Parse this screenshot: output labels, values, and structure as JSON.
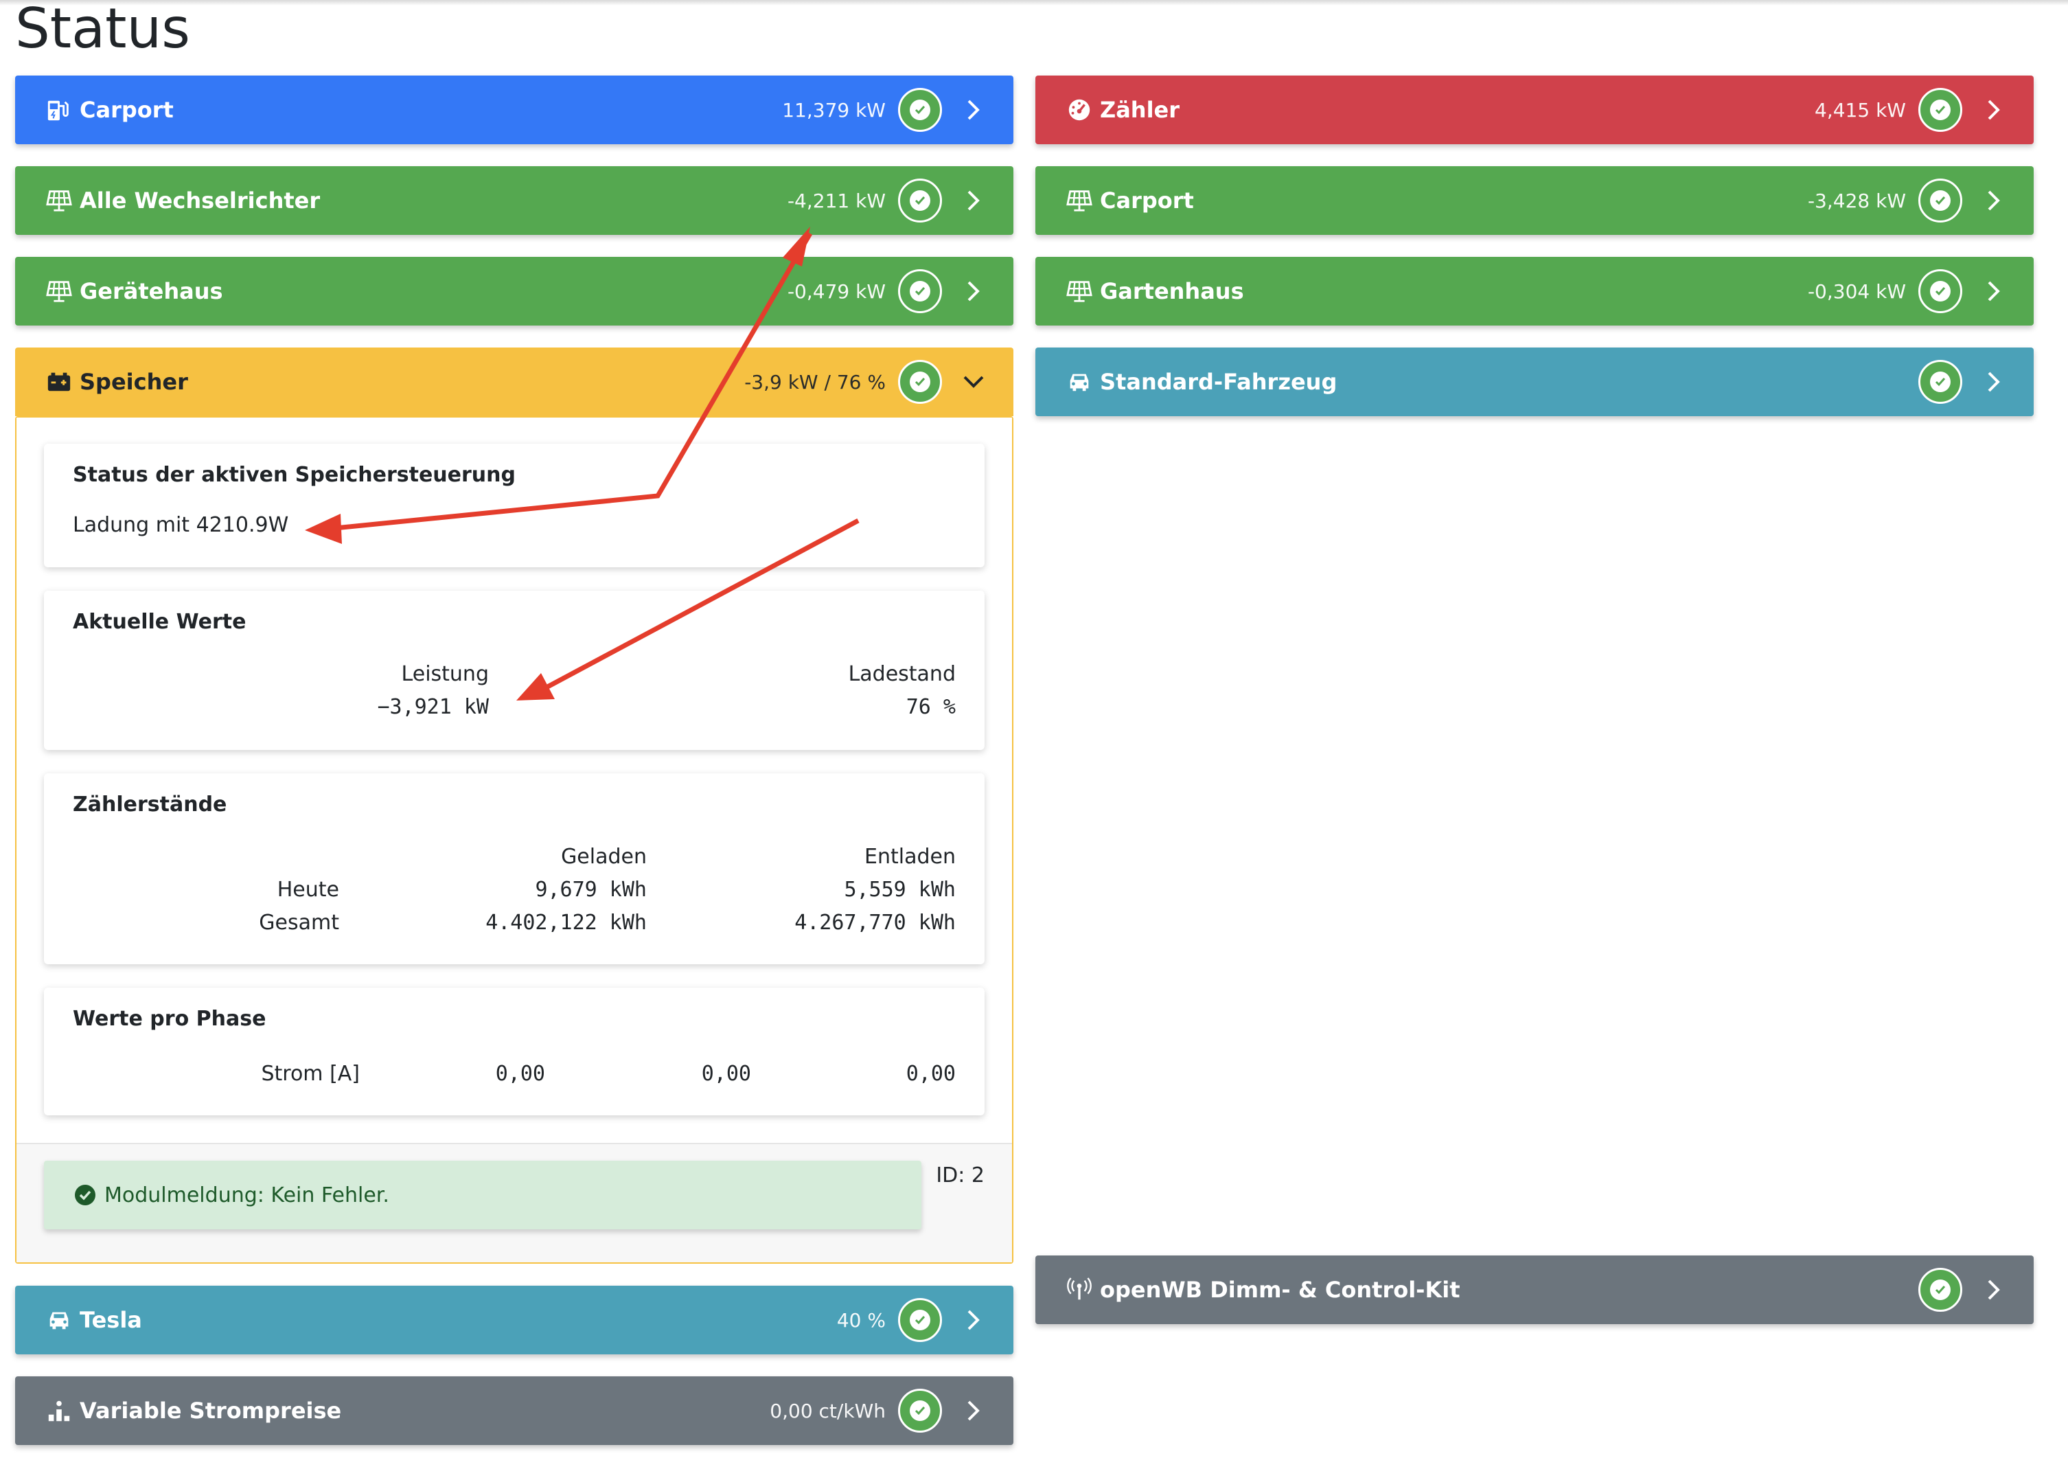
{
  "page": {
    "title": "Status"
  },
  "colors": {
    "blue": "#3478f6",
    "red": "#d0414b",
    "green": "#55a850",
    "yellow": "#f6c142",
    "teal": "#4ba1b8",
    "gray": "#6c757d",
    "annotation_arrow": "#e43d2c"
  },
  "left_column": [
    {
      "id": "carport-meter",
      "icon": "charging-station-icon",
      "label": "Carport",
      "value": "11,379 kW",
      "color": "blue",
      "expanded": false
    },
    {
      "id": "alle-wechselrichter",
      "icon": "solar-panel-icon",
      "label": "Alle Wechselrichter",
      "value": "-4,211 kW",
      "color": "green",
      "expanded": false
    },
    {
      "id": "geraetehaus",
      "icon": "solar-panel-icon",
      "label": "Gerätehaus",
      "value": "-0,479 kW",
      "color": "green",
      "expanded": false
    },
    {
      "id": "speicher",
      "icon": "battery-icon",
      "label": "Speicher",
      "value": "-3,9 kW / 76 %",
      "color": "yellow",
      "expanded": true
    }
  ],
  "speicher_panel": {
    "status_card": {
      "title": "Status der aktiven Speichersteuerung",
      "text": "Ladung mit 4210.9W"
    },
    "aktuelle_werte": {
      "title": "Aktuelle Werte",
      "leistung_label": "Leistung",
      "leistung_value": "−3,921 kW",
      "ladestand_label": "Ladestand",
      "ladestand_value": "76 %"
    },
    "zaehlerstaende": {
      "title": "Zählerstände",
      "col_geladen": "Geladen",
      "col_entladen": "Entladen",
      "rows": [
        {
          "label": "Heute",
          "geladen": "9,679 kWh",
          "entladen": "5,559 kWh"
        },
        {
          "label": "Gesamt",
          "geladen": "4.402,122 kWh",
          "entladen": "4.267,770 kWh"
        }
      ]
    },
    "werte_pro_phase": {
      "title": "Werte pro Phase",
      "row_label": "Strom [A]",
      "values": [
        "0,00",
        "0,00",
        "0,00"
      ]
    },
    "footer": {
      "message": "Modulmeldung: Kein Fehler.",
      "id_text": "ID: 2"
    }
  },
  "left_bottom": [
    {
      "id": "tesla",
      "icon": "car-icon",
      "label": "Tesla",
      "value": "40 %",
      "color": "teal"
    },
    {
      "id": "variable-strompreise",
      "icon": "price-chart-icon",
      "label": "Variable Strompreise",
      "value": "0,00 ct/kWh",
      "color": "gray"
    }
  ],
  "right_column": [
    {
      "id": "zaehler",
      "icon": "gauge-icon",
      "label": "Zähler",
      "value": "4,415 kW",
      "color": "red"
    },
    {
      "id": "carport-pv",
      "icon": "solar-panel-icon",
      "label": "Carport",
      "value": "-3,428 kW",
      "color": "green"
    },
    {
      "id": "gartenhaus",
      "icon": "solar-panel-icon",
      "label": "Gartenhaus",
      "value": "-0,304 kW",
      "color": "green"
    },
    {
      "id": "standard-fahrzeug",
      "icon": "car-icon",
      "label": "Standard-Fahrzeug",
      "value": "",
      "color": "teal"
    }
  ],
  "right_bottom": [
    {
      "id": "openwb-dimm",
      "icon": "antenna-icon",
      "label": "openWB Dimm- & Control-Kit",
      "value": "",
      "color": "gray"
    }
  ]
}
